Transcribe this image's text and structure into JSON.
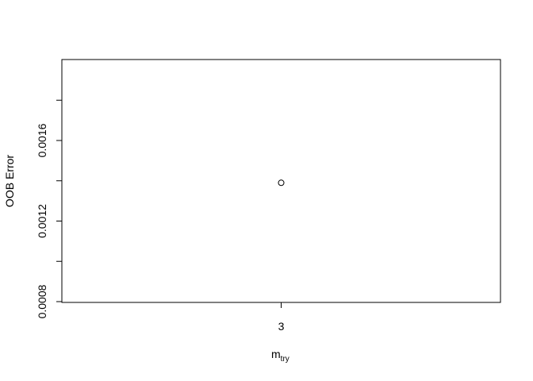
{
  "chart_data": {
    "type": "scatter",
    "title": "",
    "xlabel": {
      "main": "m",
      "sub": "try"
    },
    "ylabel": "OOB Error",
    "x_ticks": [
      3
    ],
    "x_tick_labels": [
      "3"
    ],
    "y_ticks": [
      0.0008,
      0.0012,
      0.0016
    ],
    "y_tick_labels": [
      "0.0008",
      "0.0012",
      "0.0016"
    ],
    "ylim": [
      0.0008,
      0.002
    ],
    "xlim": [
      2.4,
      3.6
    ],
    "grid": false,
    "points": [
      {
        "x": 3,
        "y": 0.00139
      }
    ]
  },
  "colors": {
    "axis": "#000000",
    "point_stroke": "#000000",
    "background": "#ffffff"
  }
}
